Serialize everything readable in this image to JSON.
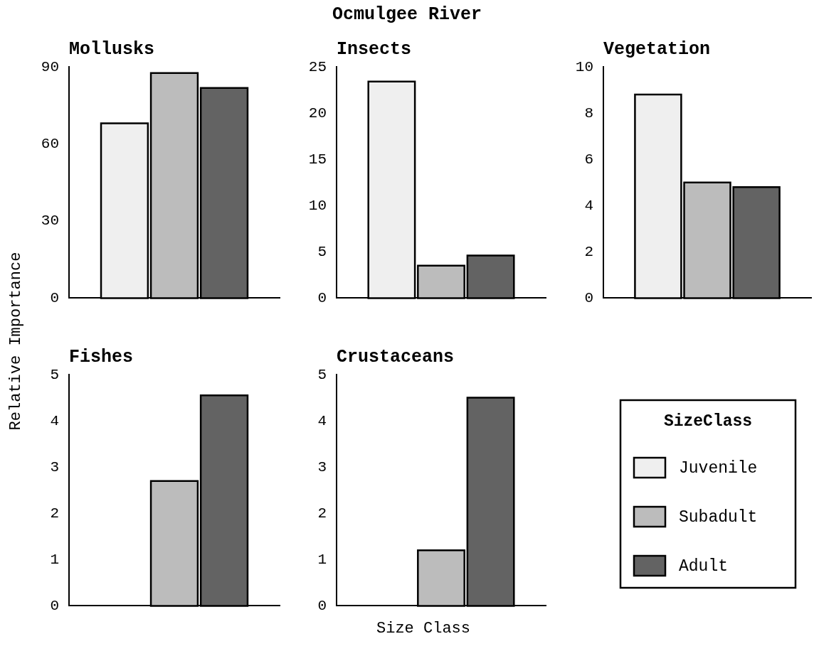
{
  "chart_data": [
    {
      "type": "other",
      "title": "Ocmulgee River",
      "xlabel": "Size Class",
      "ylabel": "Relative Importance"
    },
    {
      "type": "bar",
      "title": "Mollusks",
      "categories": [
        null
      ],
      "ylim": [
        0,
        90
      ],
      "yticks": [
        0,
        30,
        60,
        90
      ],
      "tick_labels": "y",
      "series": [
        {
          "color": "#efefef",
          "values": [
            68
          ]
        },
        {
          "color": "#bcbcbc",
          "values": [
            87.6
          ]
        },
        {
          "color": "#636363",
          "values": [
            81.8
          ]
        }
      ]
    },
    {
      "type": "bar",
      "title": "Insects",
      "categories": [
        null
      ],
      "ylim": [
        0,
        25
      ],
      "yticks": [
        0,
        5,
        10,
        15,
        20,
        25
      ],
      "tick_labels": "y",
      "series": [
        {
          "color": "#efefef",
          "values": [
            23.4
          ]
        },
        {
          "color": "#bcbcbc",
          "values": [
            3.5
          ]
        },
        {
          "color": "#636363",
          "values": [
            4.6
          ]
        }
      ]
    },
    {
      "type": "bar",
      "title": "Vegetation",
      "categories": [
        null
      ],
      "ylim": [
        0,
        10
      ],
      "yticks": [
        0,
        2,
        4,
        6,
        8,
        10
      ],
      "tick_labels": "y",
      "series": [
        {
          "color": "#efefef",
          "values": [
            8.8
          ]
        },
        {
          "color": "#bcbcbc",
          "values": [
            5.0
          ]
        },
        {
          "color": "#636363",
          "values": [
            4.8
          ]
        }
      ]
    },
    {
      "type": "bar",
      "title": "Fishes",
      "categories": [
        null
      ],
      "ylim": [
        0,
        5
      ],
      "yticks": [
        0,
        1,
        2,
        3,
        4,
        5
      ],
      "tick_labels": "y",
      "series": [
        {
          "color": "#efefef",
          "values": [
            0
          ]
        },
        {
          "color": "#bcbcbc",
          "values": [
            2.7
          ]
        },
        {
          "color": "#636363",
          "values": [
            4.55
          ]
        }
      ]
    },
    {
      "type": "bar",
      "title": "Crustaceans",
      "categories": [
        null
      ],
      "ylim": [
        0,
        5
      ],
      "yticks": [
        0,
        1,
        2,
        3,
        4,
        5
      ],
      "tick_labels": "y",
      "legend": "right",
      "legend_title": "SizeClass",
      "series": [
        {
          "name": "Juvenile",
          "color": "#efefef",
          "values": [
            0
          ]
        },
        {
          "name": "Subadult",
          "color": "#bcbcbc",
          "values": [
            1.2
          ]
        },
        {
          "name": "Adult",
          "color": "#636363",
          "values": [
            4.5
          ]
        }
      ]
    }
  ]
}
